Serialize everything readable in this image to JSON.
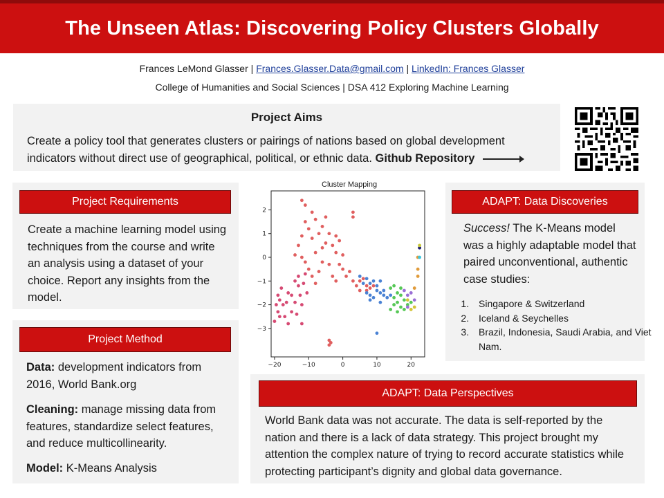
{
  "title": "The Unseen Atlas: Discovering Policy Clusters Globally",
  "byline": {
    "author": "Frances LeMond Glasser",
    "separator": " | ",
    "email": "Frances.Glasser.Data@gmail.com",
    "linkedin": "LinkedIn: Frances Glasser"
  },
  "college": "College of Humanities and Social Sciences | DSA 412 Exploring Machine Learning",
  "aims": {
    "heading": "Project Aims",
    "text": "Create a policy tool that generates clusters or pairings of nations based on global development indicators without direct use of  geographical, political, or ethnic data. ",
    "link": "Github Repository"
  },
  "requirements": {
    "heading": "Project Requirements",
    "text": "Create a machine learning model using techniques from the course and write an analysis using a dataset of your choice. Report any insights from the model."
  },
  "method": {
    "heading": "Project Method",
    "data_label": "Data:",
    "data_text": " development indicators from 2016, World Bank.org",
    "cleaning_label": "Cleaning:",
    "cleaning_text": " manage missing data from features, standardize select features, and reduce multicollinearity.",
    "model_label": "Model:",
    "model_text": " K-Means Analysis"
  },
  "discoveries": {
    "heading": "ADAPT: Data Discoveries",
    "success": "Success!",
    "text": " The K-Means model was a highly adaptable model that paired unconventional, authentic case studies:",
    "items": [
      "Singapore & Switzerland",
      "Iceland & Seychelles",
      "Brazil, Indonesia, Saudi Arabia, and Viet Nam."
    ]
  },
  "perspectives": {
    "heading": "ADAPT: Data Perspectives",
    "text": "World Bank data was not accurate. The data is self-reported by the nation and there is a lack of data strategy. This project brought my attention the complex nature of trying to record accurate statistics while protecting participant’s dignity and global data governance."
  },
  "colors": {
    "brand_red": "#cc1010",
    "panel_gray": "#f2f2f2"
  },
  "icons": [
    "qr-code-icon",
    "arrow-right-icon"
  ],
  "chart_data": {
    "type": "scatter",
    "title": "Cluster Mapping",
    "xlabel": "",
    "ylabel": "",
    "xlim": [
      -21,
      24
    ],
    "ylim": [
      -4.2,
      2.8
    ],
    "xticks": [
      -20,
      -10,
      0,
      10,
      20
    ],
    "yticks": [
      -3,
      -2,
      -1,
      0,
      1,
      2
    ],
    "grid": false,
    "series": [
      {
        "color": "#d64a73",
        "points": [
          [
            -20,
            -2.7
          ],
          [
            -19.5,
            -2.0
          ],
          [
            -19,
            -2.3
          ],
          [
            -18.5,
            -1.8
          ],
          [
            -19,
            -1.6
          ],
          [
            -18,
            -1.3
          ],
          [
            -17.5,
            -2.0
          ],
          [
            -17,
            -2.5
          ],
          [
            -16.5,
            -1.9
          ],
          [
            -16,
            -1.5
          ],
          [
            -16,
            -2.8
          ],
          [
            -15,
            -1.6
          ],
          [
            -15,
            -2.3
          ],
          [
            -14,
            -1.0
          ],
          [
            -14,
            -1.9
          ],
          [
            -13.5,
            -2.4
          ],
          [
            -13,
            -1.2
          ],
          [
            -13,
            -0.8
          ],
          [
            -12.5,
            -1.6
          ],
          [
            -12,
            -2.0
          ],
          [
            -12,
            -2.8
          ],
          [
            -11.5,
            -1.1
          ],
          [
            -11,
            -0.7
          ],
          [
            -10.5,
            -1.5
          ],
          [
            -18.5,
            -2.5
          ]
        ]
      },
      {
        "color": "#e05f5f",
        "points": [
          [
            -12,
            2.4
          ],
          [
            -11,
            2.2
          ],
          [
            -11,
            1.5
          ],
          [
            -12,
            0.9
          ],
          [
            -13,
            0.5
          ],
          [
            -10,
            1.2
          ],
          [
            -9,
            0.8
          ],
          [
            -9,
            1.9
          ],
          [
            -8,
            1.6
          ],
          [
            -8,
            0.2
          ],
          [
            -7,
            1.0
          ],
          [
            -6,
            1.3
          ],
          [
            -6,
            -0.2
          ],
          [
            -5,
            0.6
          ],
          [
            -5,
            1.7
          ],
          [
            -4,
            1.0
          ],
          [
            -4,
            -0.3
          ],
          [
            -3,
            0.5
          ],
          [
            -3,
            -0.8
          ],
          [
            -2,
            0.2
          ],
          [
            -2,
            -1.0
          ],
          [
            -1,
            -0.3
          ],
          [
            -1,
            0.7
          ],
          [
            0,
            -0.5
          ],
          [
            0,
            0.1
          ],
          [
            1,
            -0.8
          ],
          [
            2,
            -0.6
          ],
          [
            3,
            -1.0
          ],
          [
            3,
            1.9
          ],
          [
            3,
            1.7
          ],
          [
            4,
            -1.2
          ],
          [
            5,
            -1.0
          ],
          [
            5,
            -1.4
          ],
          [
            6,
            -0.9
          ],
          [
            7,
            -1.2
          ],
          [
            7,
            -1.4
          ],
          [
            8,
            -1.3
          ],
          [
            9,
            -1.2
          ],
          [
            -12,
            0.0
          ],
          [
            -11,
            -0.2
          ],
          [
            -10,
            -0.5
          ],
          [
            -9,
            -0.8
          ],
          [
            -14,
            0.1
          ],
          [
            -8,
            -1.1
          ],
          [
            -7,
            -0.6
          ],
          [
            -4,
            -3.5
          ],
          [
            -3.5,
            -3.6
          ],
          [
            -4,
            -3.7
          ],
          [
            -6,
            0.4
          ],
          [
            -2,
            0.9
          ]
        ]
      },
      {
        "color": "#4a82d4",
        "points": [
          [
            5,
            -0.8
          ],
          [
            6,
            -1.1
          ],
          [
            7,
            -0.9
          ],
          [
            8,
            -1.1
          ],
          [
            9,
            -1.0
          ],
          [
            10,
            -1.2
          ],
          [
            11,
            -1.0
          ],
          [
            10,
            -1.4
          ],
          [
            11,
            -1.5
          ],
          [
            12,
            -1.6
          ],
          [
            13,
            -1.7
          ],
          [
            14,
            -1.6
          ],
          [
            8,
            -1.6
          ],
          [
            9,
            -1.7
          ],
          [
            7,
            -1.5
          ],
          [
            8,
            -1.8
          ],
          [
            11,
            -1.9
          ],
          [
            12,
            -1.4
          ],
          [
            10,
            -3.2
          ]
        ]
      },
      {
        "color": "#56c856",
        "points": [
          [
            14,
            -1.3
          ],
          [
            15,
            -1.2
          ],
          [
            15,
            -1.7
          ],
          [
            16,
            -1.5
          ],
          [
            17,
            -1.6
          ],
          [
            18,
            -1.8
          ],
          [
            16,
            -1.9
          ],
          [
            17,
            -2.1
          ],
          [
            18,
            -2.2
          ],
          [
            15,
            -2.0
          ],
          [
            19,
            -2.0
          ],
          [
            20,
            -1.9
          ],
          [
            14,
            -2.2
          ],
          [
            16,
            -2.3
          ],
          [
            17,
            -1.3
          ]
        ]
      },
      {
        "color": "#9b6fd6",
        "points": [
          [
            18,
            -1.4
          ],
          [
            19,
            -1.6
          ],
          [
            20,
            -1.5
          ],
          [
            19,
            -2.1
          ],
          [
            21,
            -1.8
          ]
        ]
      },
      {
        "color": "#d4c43a",
        "points": [
          [
            19,
            -1.8
          ],
          [
            20,
            -2.2
          ],
          [
            21,
            -2.1
          ]
        ]
      },
      {
        "color": "#e09b3a",
        "points": [
          [
            22,
            -0.5
          ],
          [
            22,
            0.0
          ],
          [
            21,
            -1.3
          ],
          [
            22,
            -0.8
          ]
        ]
      },
      {
        "color": "#3bc7e0",
        "points": [
          [
            22.5,
            0.0
          ]
        ]
      },
      {
        "color": "#1a1a6a",
        "points": [
          [
            22.5,
            0.4
          ]
        ]
      },
      {
        "color": "#c8c83a",
        "points": [
          [
            22.5,
            0.5
          ]
        ]
      }
    ]
  }
}
